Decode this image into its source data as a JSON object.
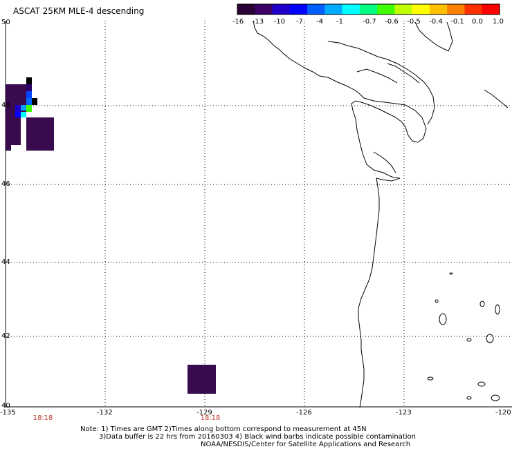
{
  "title": "ASCAT 25KM MLE-4 descending",
  "colorbar": {
    "colors": [
      "#2a0036",
      "#3b0066",
      "#2200cc",
      "#0000ff",
      "#0060ff",
      "#00aaff",
      "#00ffff",
      "#00ff80",
      "#40ff00",
      "#c0ff00",
      "#ffff00",
      "#ffc000",
      "#ff8000",
      "#ff3000",
      "#ff0000"
    ],
    "labels": [
      "-16",
      "-13",
      "-10",
      "-7",
      "-4",
      "-1",
      "-0.7",
      "-0.6",
      "-0.5",
      "-0.4",
      "-0.1",
      "0.0",
      "1.0"
    ]
  },
  "lon_labels": [
    "-135",
    "-132",
    "-129",
    "-126",
    "-123",
    "-120"
  ],
  "lat_labels": [
    "50",
    "48",
    "46",
    "44",
    "42",
    "40"
  ],
  "time_labels": [
    "18:18",
    "18:18"
  ],
  "notes": {
    "line1": "Note: 1) Times are GMT 2)Times along bottom correspond to measurement at 45N",
    "line2": "3)Data buffer is 22 hrs from 20160303 4) Black wind barbs indicate possible contamination",
    "line3": "NOAA/NESDIS/Center for Satellite Applications and Research"
  },
  "grid_color": "#000000",
  "data_color_main": "#3a0a4e"
}
